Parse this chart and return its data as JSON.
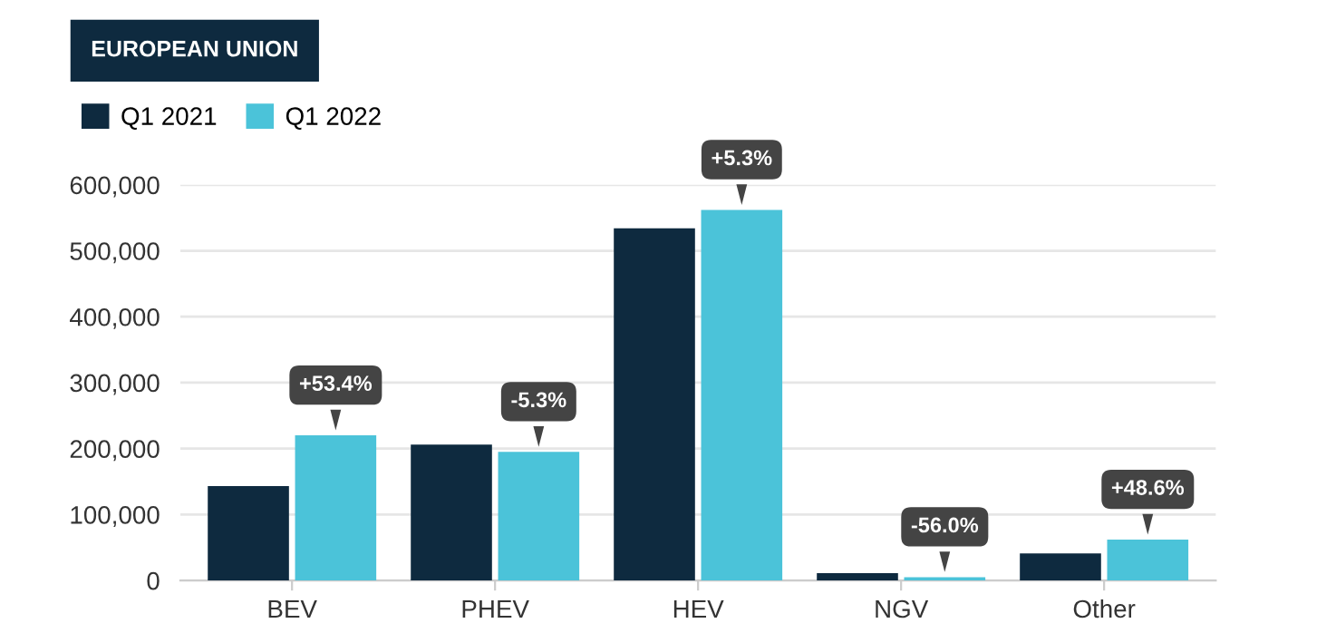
{
  "chart_data": {
    "type": "bar",
    "title": "EUROPEAN UNION",
    "categories": [
      "BEV",
      "PHEV",
      "HEV",
      "NGV",
      "Other"
    ],
    "series": [
      {
        "name": "Q1 2021",
        "color": "#0e2a3f",
        "values": [
          143000,
          206000,
          534000,
          11000,
          41000
        ]
      },
      {
        "name": "Q1 2022",
        "color": "#4bc3d9",
        "values": [
          220000,
          195000,
          562000,
          5000,
          62000
        ]
      }
    ],
    "ylim": [
      0,
      600000
    ],
    "yticks": [
      {
        "value": 0,
        "label": "0"
      },
      {
        "value": 100000,
        "label": "100,000"
      },
      {
        "value": 200000,
        "label": "200,000"
      },
      {
        "value": 300000,
        "label": "300,000"
      },
      {
        "value": 400000,
        "label": "400,000"
      },
      {
        "value": 500000,
        "label": "500,000"
      },
      {
        "value": 600000,
        "label": "600,000"
      }
    ],
    "grid": "y",
    "legend": "top left",
    "annotations": [
      {
        "text": "+53.4%",
        "x": "BEV",
        "y": 220000
      },
      {
        "text": "-5.3%",
        "x": "PHEV",
        "y": 195000
      },
      {
        "text": "+5.3%",
        "x": "HEV",
        "y": 562000
      },
      {
        "text": "-56.0%",
        "x": "NGV",
        "y": 5000
      },
      {
        "text": "+48.6%",
        "x": "Other",
        "y": 62000
      }
    ]
  }
}
